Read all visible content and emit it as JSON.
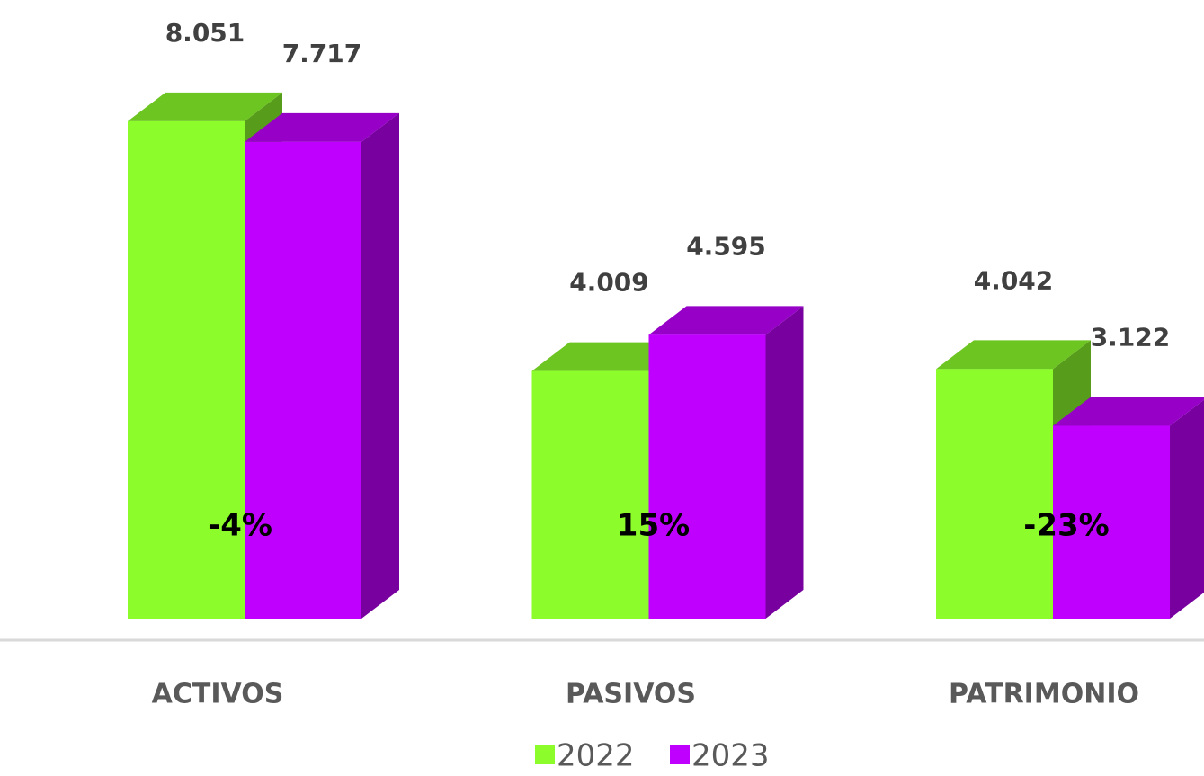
{
  "chart_data": {
    "type": "bar3d",
    "categories": [
      "ACTIVOS",
      "PASIVOS",
      "PATRIMONIO"
    ],
    "series": [
      {
        "name": "2022",
        "color": "#8cfc2a",
        "values": [
          8.051,
          4.009,
          4.042
        ]
      },
      {
        "name": "2023",
        "color": "#c000ff",
        "values": [
          7.717,
          4.595,
          3.122
        ]
      }
    ],
    "annotations": [
      "-4%",
      "15%",
      "-23%"
    ],
    "ylim": [
      0,
      10
    ],
    "legend": "bottom"
  }
}
